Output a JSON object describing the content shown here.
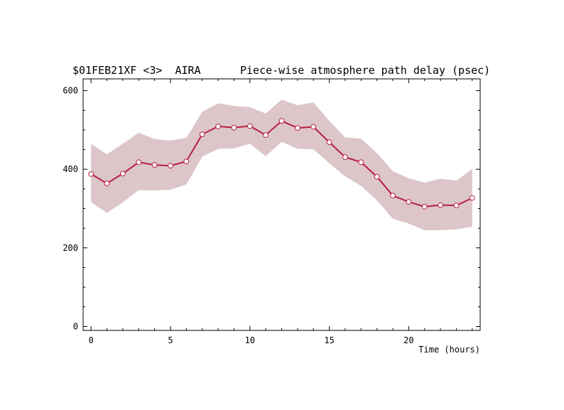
{
  "chart_data": {
    "type": "line",
    "title_left": "$01FEB21XF <3>  AIRA",
    "title_right": "Piece-wise atmosphere path delay (psec)",
    "xlabel": "Time (hours)",
    "ylabel": "",
    "xlim": [
      -0.5,
      24.5
    ],
    "ylim": [
      -10,
      630
    ],
    "xticks": [
      0,
      5,
      10,
      15,
      20
    ],
    "yticks": [
      0,
      200,
      400,
      600
    ],
    "grid": false,
    "x": [
      0,
      1,
      2,
      3,
      4,
      5,
      6,
      7,
      8,
      9,
      10,
      11,
      12,
      13,
      14,
      15,
      16,
      17,
      18,
      19,
      20,
      21,
      22,
      23,
      24
    ],
    "values": [
      388,
      364,
      389,
      418,
      411,
      409,
      420,
      489,
      509,
      506,
      510,
      487,
      523,
      505,
      508,
      469,
      431,
      418,
      381,
      333,
      317,
      305,
      309,
      308,
      327
    ],
    "band_upper": [
      465,
      438,
      465,
      493,
      477,
      473,
      480,
      546,
      568,
      561,
      558,
      542,
      577,
      563,
      570,
      523,
      481,
      478,
      441,
      395,
      377,
      366,
      376,
      371,
      401
    ],
    "band_lower": [
      316,
      289,
      316,
      347,
      346,
      348,
      361,
      432,
      452,
      453,
      465,
      433,
      470,
      452,
      451,
      415,
      382,
      358,
      321,
      274,
      262,
      245,
      245,
      247,
      254
    ],
    "colors": {
      "line": "#b5203f",
      "band": "#dcc6ca",
      "marker_fill": "#ffffff",
      "axes": "#000000"
    }
  }
}
